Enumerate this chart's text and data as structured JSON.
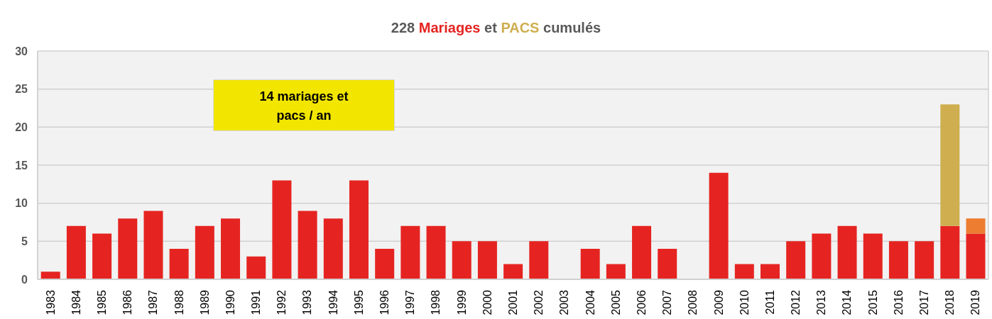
{
  "chart_data": {
    "type": "bar",
    "title": "228 Mariages et PACS cumulés",
    "categories": [
      "1983",
      "1984",
      "1985",
      "1986",
      "1987",
      "1988",
      "1989",
      "1990",
      "1991",
      "1992",
      "1993",
      "1994",
      "1995",
      "1996",
      "1997",
      "1998",
      "1999",
      "2000",
      "2001",
      "2002",
      "2003",
      "2004",
      "2005",
      "2006",
      "2007",
      "2008",
      "2009",
      "2010",
      "2011",
      "2012",
      "2013",
      "2014",
      "2015",
      "2016",
      "2017",
      "2018",
      "2019"
    ],
    "series": [
      {
        "color": "#e52421",
        "values": [
          1,
          7,
          6,
          8,
          9,
          4,
          7,
          8,
          3,
          13,
          9,
          8,
          13,
          4,
          7,
          7,
          5,
          5,
          2,
          5,
          0,
          4,
          2,
          7,
          4,
          0,
          14,
          2,
          2,
          5,
          6,
          7,
          6,
          5,
          5,
          7,
          6
        ]
      },
      {
        "color": "#cfae4f",
        "values": [
          null,
          null,
          null,
          null,
          null,
          null,
          null,
          null,
          null,
          null,
          null,
          null,
          null,
          null,
          null,
          null,
          null,
          null,
          null,
          null,
          null,
          null,
          null,
          null,
          null,
          null,
          null,
          null,
          null,
          null,
          null,
          null,
          null,
          null,
          null,
          16,
          null
        ]
      },
      {
        "color": "#ed7d31",
        "values": [
          null,
          null,
          null,
          null,
          null,
          null,
          null,
          null,
          null,
          null,
          null,
          null,
          null,
          null,
          null,
          null,
          null,
          null,
          null,
          null,
          null,
          null,
          null,
          null,
          null,
          null,
          null,
          null,
          null,
          null,
          null,
          null,
          null,
          null,
          null,
          null,
          2
        ]
      }
    ],
    "stacked": true,
    "ylim": [
      0,
      30
    ],
    "yticks": [
      0,
      5,
      10,
      15,
      20,
      25,
      30
    ],
    "grid": "y",
    "annotations": [
      "14 mariages et pacs / an"
    ]
  }
}
